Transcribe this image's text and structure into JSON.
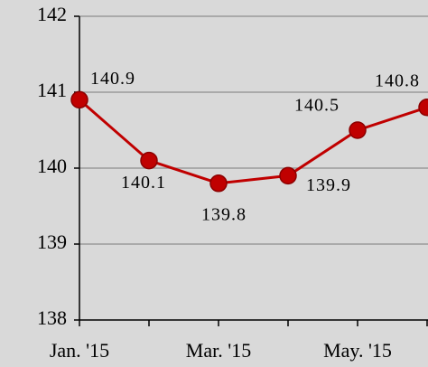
{
  "chart_data": {
    "type": "line",
    "categories": [
      "Jan. '15",
      null,
      "Mar. '15",
      null,
      "May. '15",
      null
    ],
    "series": [
      {
        "color": "#c00000",
        "values": [
          140.9,
          140.1,
          139.8,
          139.9,
          140.5,
          140.8
        ]
      }
    ],
    "ylim": [
      138,
      142
    ],
    "yticks": [
      138,
      139,
      140,
      141,
      142
    ],
    "grid": true
  }
}
